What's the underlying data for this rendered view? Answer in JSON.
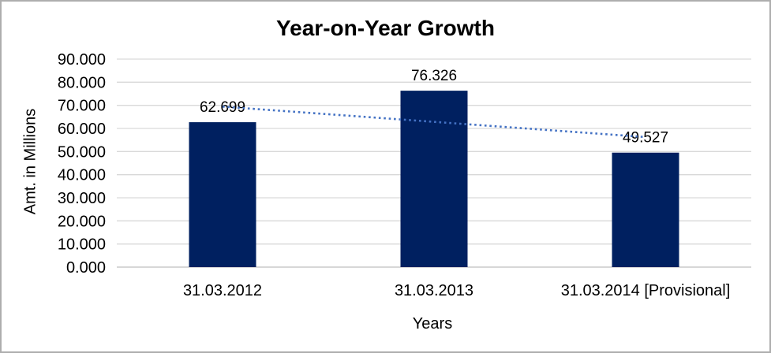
{
  "chart_data": {
    "type": "bar",
    "title": "Year-on-Year Growth",
    "xlabel": "Years",
    "ylabel": "Amt. in Millions",
    "categories": [
      "31.03.2012",
      "31.03.2013",
      "31.03.2014 [Provisional]"
    ],
    "values": [
      62.699,
      76.326,
      49.527
    ],
    "value_labels": [
      "62.699",
      "76.326",
      "49.527"
    ],
    "ylim": [
      0,
      90
    ],
    "ytick_step": 10,
    "ytick_labels": [
      "0.000",
      "10.000",
      "20.000",
      "30.000",
      "40.000",
      "50.000",
      "60.000",
      "70.000",
      "80.000",
      "90.000"
    ],
    "grid": "horizontal",
    "legend": "none",
    "trendline": {
      "type": "linear",
      "style": "dotted"
    },
    "colors": {
      "bar": "#002060",
      "trendline": "#4472C4",
      "gridline": "#D9D9D9",
      "axis_line": "#BFBFBF",
      "text": "#000000",
      "frame_border": "#AEAEAE",
      "background": "#FFFFFF"
    }
  }
}
